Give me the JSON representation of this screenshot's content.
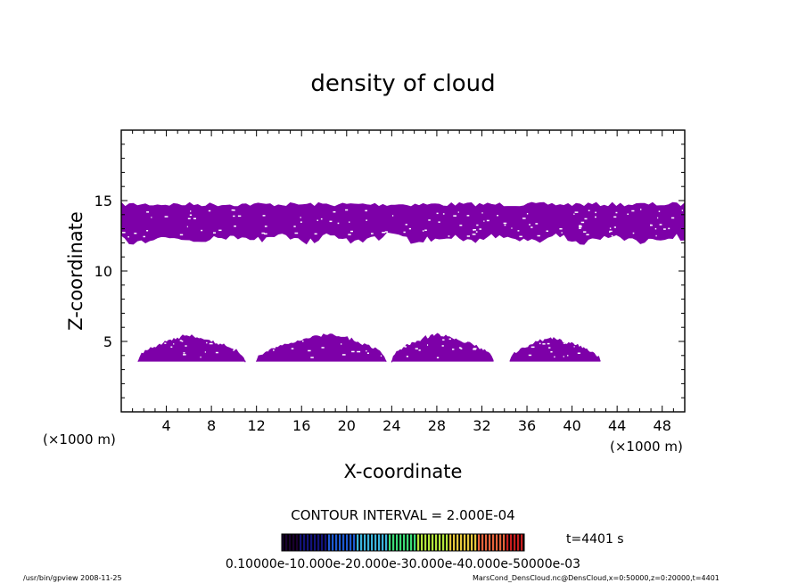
{
  "chart_data": {
    "type": "heatmap",
    "title": "density of cloud",
    "xlabel": "X-coordinate",
    "ylabel": "Z-coordinate",
    "x_unit": "(×1000 m)",
    "z_unit": "(×1000 m)",
    "xlim": [
      0,
      50
    ],
    "ylim": [
      0,
      20
    ],
    "x_ticks": [
      4,
      8,
      12,
      16,
      20,
      24,
      28,
      32,
      36,
      40,
      44,
      48
    ],
    "y_ticks": [
      5,
      10,
      15
    ],
    "fill_color": "#7d00a8",
    "cloud_color_dark": "#4f1a8a",
    "cloud_layers": [
      {
        "kind": "band",
        "x_from": 0,
        "x_to": 50,
        "z_bottom": 12.2,
        "z_top": 14.8
      },
      {
        "kind": "dome",
        "x_from": 1.5,
        "x_to": 11,
        "z_base": 3.6,
        "z_peak": 5.5,
        "x_peak": 6
      },
      {
        "kind": "dome",
        "x_from": 12,
        "x_to": 23.5,
        "z_base": 3.6,
        "z_peak": 5.6,
        "x_peak": 18.5
      },
      {
        "kind": "dome",
        "x_from": 24,
        "x_to": 33,
        "z_base": 3.6,
        "z_peak": 5.6,
        "x_peak": 28
      },
      {
        "kind": "dome",
        "x_from": 34.5,
        "x_to": 42.5,
        "z_base": 3.6,
        "z_peak": 5.3,
        "x_peak": 38
      }
    ],
    "contour_interval": "CONTOUR INTERVAL = 2.000E-04",
    "time_label": "t=4401 s",
    "colorbar_label": "0.10000e-10.000e-20.000e-30.000e-40.000e-50000e-03",
    "colorbar_colors": [
      "#1a0030",
      "#12127a",
      "#1e5ad2",
      "#3cb4dc",
      "#3cdc78",
      "#b4e63c",
      "#e6c83c",
      "#e6643c",
      "#c81e1e"
    ],
    "footer_left": "/usr/bin/gpview   2008-11-25",
    "footer_right": "MarsCond_DensCloud.nc@DensCloud,x=0:50000,z=0:20000,t=4401"
  }
}
